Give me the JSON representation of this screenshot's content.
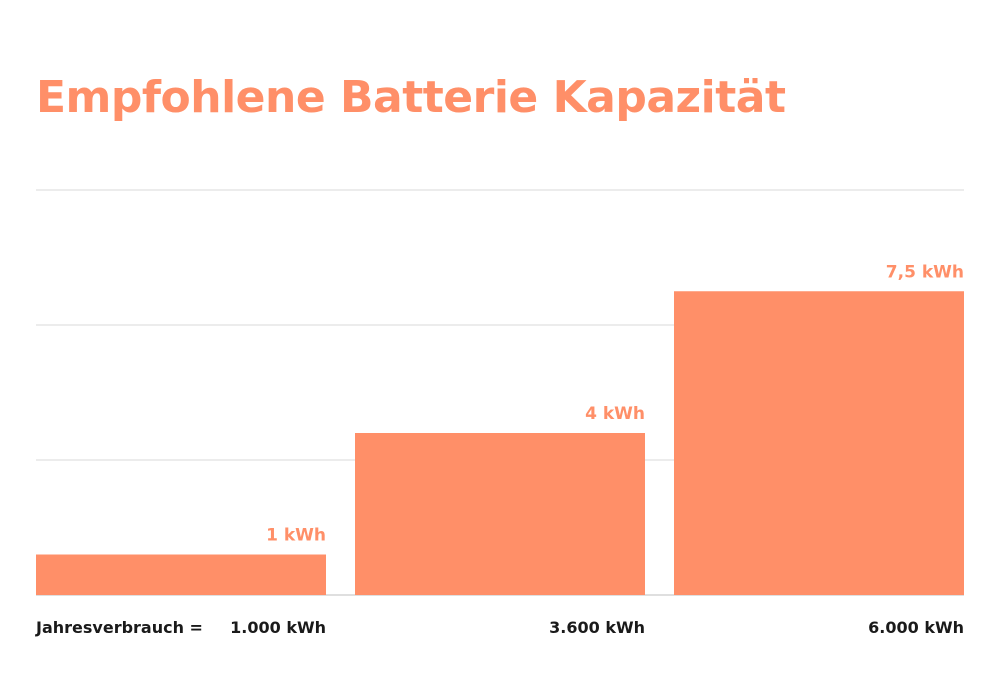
{
  "chart_data": {
    "type": "bar",
    "title": "Empfohlene Batterie Kapazität",
    "xlabel": "Jahresverbrauch =",
    "ylabel": "",
    "categories": [
      "1.000 kWh",
      "3.600 kWh",
      "6.000 kWh"
    ],
    "values": [
      1,
      4,
      7.5
    ],
    "value_labels": [
      "1 kWh",
      "4 kWh",
      "7,5 kWh"
    ],
    "unit": "kWh",
    "ylim": [
      0,
      10
    ],
    "grid": true,
    "legend": "none"
  },
  "colors": {
    "bar": "#FF8F68",
    "title": "#FF8F68",
    "value_label": "#FF8F68",
    "category_label": "#1A1A1A",
    "grid": "#D9D9D9",
    "baseline": "#BFBFBF",
    "background": "#FFFFFF"
  }
}
